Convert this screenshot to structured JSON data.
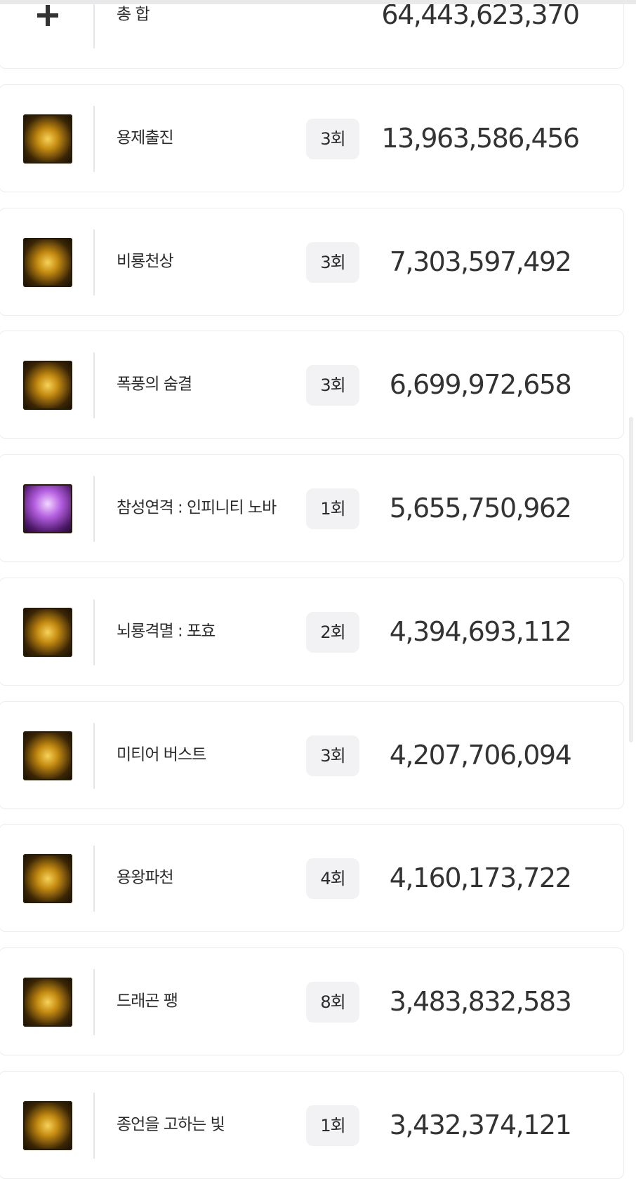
{
  "total": {
    "label": "총 합",
    "value": "64,443,623,370"
  },
  "rows": [
    {
      "name": "용제출진",
      "count": "3회",
      "value": "13,963,586,456"
    },
    {
      "name": "비룡천상",
      "count": "3회",
      "value": "7,303,597,492"
    },
    {
      "name": "폭풍의 숨결",
      "count": "3회",
      "value": "6,699,972,658"
    },
    {
      "name": "참성연격 : 인피니티 노바",
      "count": "1회",
      "value": "5,655,750,962"
    },
    {
      "name": "뇌룡격멸 : 포효",
      "count": "2회",
      "value": "4,394,693,112"
    },
    {
      "name": "미티어 버스트",
      "count": "3회",
      "value": "4,207,706,094"
    },
    {
      "name": "용왕파천",
      "count": "4회",
      "value": "4,160,173,722"
    },
    {
      "name": "드래곤 팽",
      "count": "8회",
      "value": "3,483,832,583"
    },
    {
      "name": "종언을 고하는 빛",
      "count": "1회",
      "value": "3,432,374,121"
    }
  ]
}
